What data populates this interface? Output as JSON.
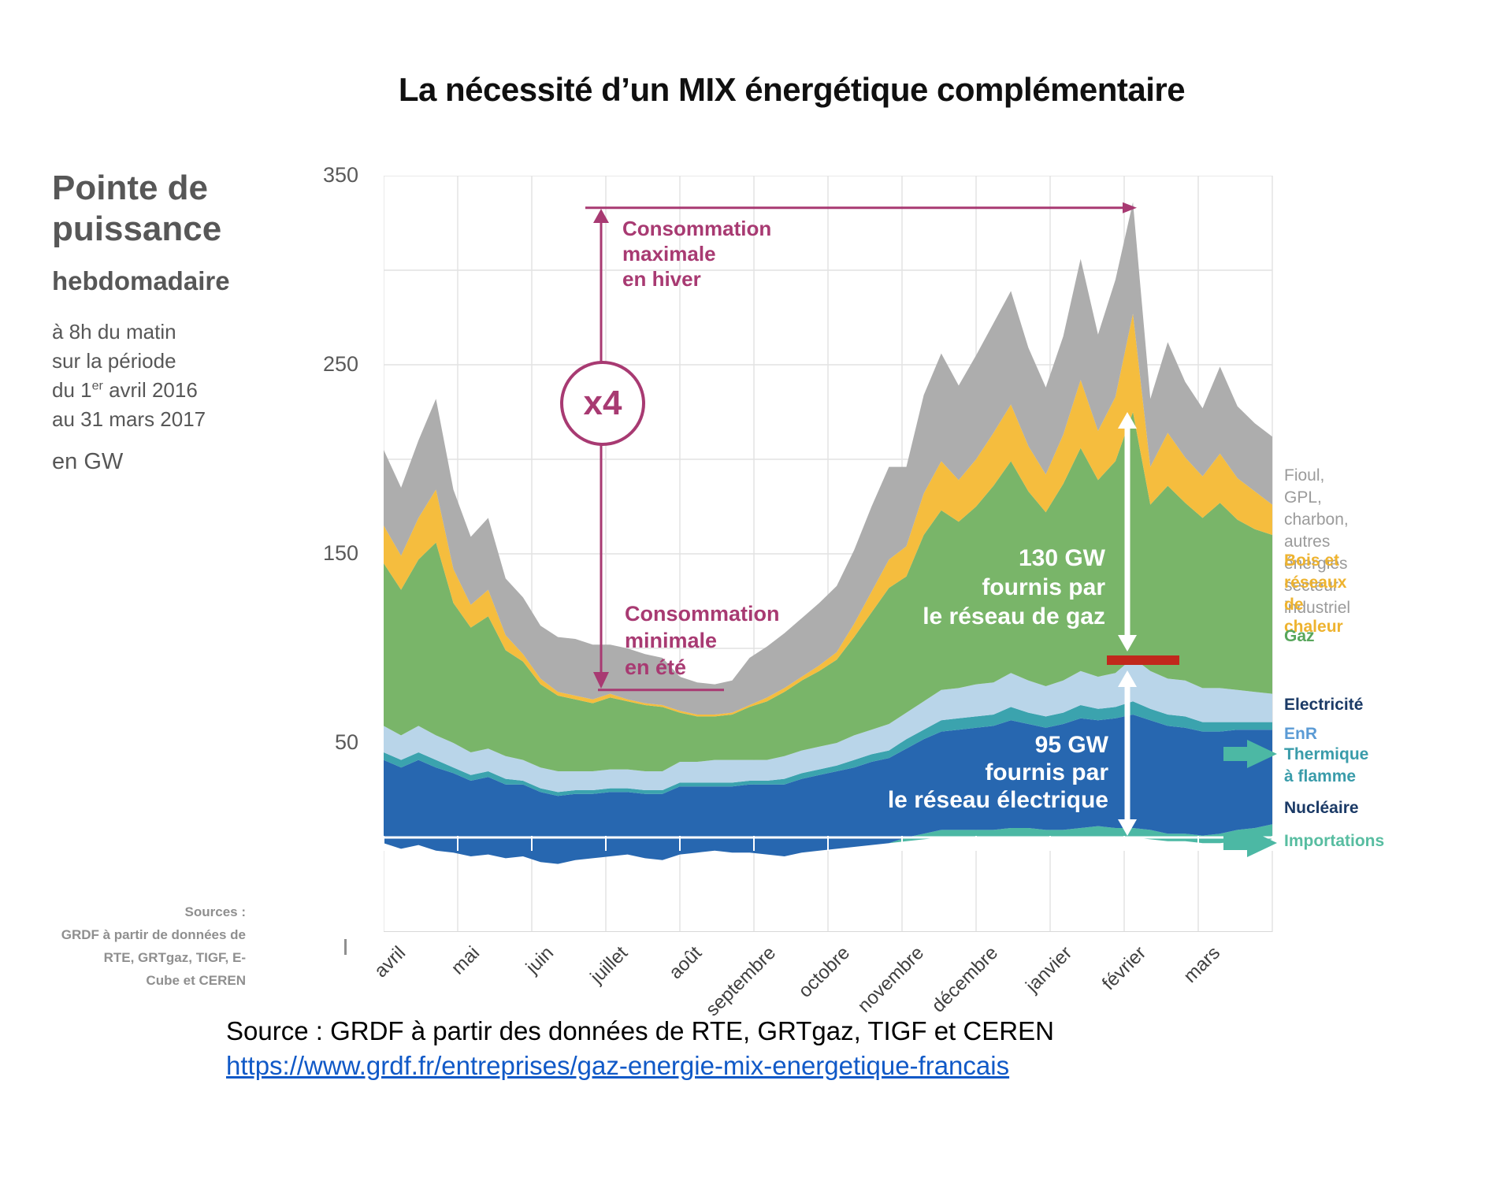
{
  "title": "La nécessité d’un MIX énergétique complémentaire",
  "left_panel": {
    "title_line1": "Pointe de",
    "title_line2": "puissance",
    "title_line3": "hebdomadaire",
    "detail_1": "à 8h du matin",
    "detail_2": "sur la période",
    "period": {
      "pre": "du 1",
      "sup": "er",
      "post": " avril 2016"
    },
    "detail_4": "au 31 mars 2017",
    "unit": "en GW"
  },
  "sources_note": "Sources :\nGRDF à partir de données de\nRTE, GRTgaz, TIGF, E-\nCube et CEREN",
  "annotations": {
    "max_label": "Consommation\nmaximale\nen hiver",
    "min_label": "Consommation\nminimale\nen été",
    "multiplier": "x4",
    "gas_note": "130 GW\nfournis par\nle réseau de gaz",
    "elec_note": "95 GW\nfournis par\nle réseau électrique",
    "accent_color": "#a83a72",
    "measure_arrow_color": "#ffffff",
    "red_dash_color": "#c1281c"
  },
  "legend": [
    {
      "id": "fioul",
      "text": "Fioul, GPL, charbon,\nautres énergies secteur\nindustriel",
      "color": "#9b9b9b",
      "bold": false
    },
    {
      "id": "bois",
      "text": "Bois et réseaux de\nchaleur",
      "color": "#eeb32f",
      "bold": true
    },
    {
      "id": "gaz",
      "text": "Gaz",
      "color": "#58a65c",
      "bold": true
    },
    {
      "id": "electricite",
      "text": "Electricité",
      "color": "#1b3a66",
      "bold": true
    },
    {
      "id": "enr",
      "text": "EnR",
      "color": "#5b9bd5",
      "bold": true
    },
    {
      "id": "thermique",
      "text": "Thermique à flamme",
      "color": "#3a9caa",
      "bold": true
    },
    {
      "id": "nucleaire",
      "text": "Nucléaire",
      "color": "#1b3a66",
      "bold": true
    },
    {
      "id": "importations",
      "text": "Importations",
      "color": "#58bda1",
      "bold": true
    }
  ],
  "footer": {
    "source_text": "Source : GRDF à partir des données de RTE, GRTgaz, TIGF et CEREN",
    "link_text": "https://www.grdf.fr/entreprises/gaz-energie-mix-energetique-francais"
  },
  "chart_data": {
    "type": "area",
    "stacked": true,
    "unit": "GW",
    "title": "Pointe de puissance hebdomadaire à 8h du matin, avril 2016 - mars 2017",
    "x_months": [
      "avril",
      "mai",
      "juin",
      "juillet",
      "août",
      "septembre",
      "octobre",
      "novembre",
      "décembre",
      "janvier",
      "février",
      "mars"
    ],
    "weeks": 52,
    "ylim": [
      -50,
      350
    ],
    "yticks": [
      350,
      250,
      150,
      50
    ],
    "grid": true,
    "legend_position": "right",
    "exports_below_zero": [
      3,
      6,
      4,
      7,
      8,
      10,
      9,
      11,
      10,
      13,
      14,
      12,
      11,
      10,
      9,
      11,
      12,
      9,
      8,
      7,
      8,
      8,
      9,
      10,
      8,
      7,
      6,
      5,
      4,
      3,
      2,
      1,
      0,
      0,
      0,
      0,
      0,
      0,
      0,
      0,
      0,
      0,
      0,
      0,
      1,
      2,
      2,
      3,
      3,
      2,
      2,
      1
    ],
    "series": [
      {
        "name": "Importations",
        "color": "#4cb8a4",
        "values": [
          0,
          0,
          0,
          0,
          0,
          0,
          0,
          0,
          0,
          0,
          0,
          0,
          0,
          0,
          0,
          0,
          0,
          0,
          0,
          0,
          0,
          0,
          0,
          0,
          0,
          0,
          0,
          0,
          0,
          0,
          2,
          3,
          4,
          4,
          4,
          4,
          5,
          5,
          4,
          4,
          5,
          6,
          5,
          5,
          5,
          4,
          4,
          4,
          5,
          6,
          7,
          8
        ]
      },
      {
        "name": "Nucléaire",
        "color": "#2767b0",
        "values": [
          44,
          43,
          45,
          44,
          42,
          40,
          41,
          39,
          38,
          37,
          36,
          35,
          34,
          34,
          33,
          34,
          35,
          36,
          35,
          34,
          35,
          36,
          37,
          38,
          39,
          40,
          41,
          42,
          44,
          45,
          47,
          50,
          52,
          53,
          54,
          55,
          57,
          55,
          54,
          56,
          58,
          56,
          58,
          60,
          58,
          57,
          56,
          55,
          54,
          53,
          52,
          50
        ]
      },
      {
        "name": "Thermique à flamme",
        "color": "#3ba3ae",
        "values": [
          4,
          4,
          4,
          4,
          3,
          3,
          3,
          3,
          2,
          2,
          2,
          2,
          2,
          2,
          2,
          2,
          2,
          2,
          2,
          2,
          2,
          2,
          2,
          3,
          3,
          3,
          3,
          4,
          4,
          4,
          5,
          5,
          6,
          6,
          6,
          6,
          7,
          6,
          6,
          6,
          7,
          6,
          6,
          7,
          6,
          6,
          6,
          5,
          5,
          4,
          4,
          4
        ]
      },
      {
        "name": "EnR",
        "color": "#b9d5e9",
        "values": [
          14,
          13,
          14,
          13,
          13,
          12,
          12,
          12,
          11,
          11,
          11,
          10,
          10,
          10,
          10,
          10,
          10,
          11,
          11,
          12,
          12,
          11,
          11,
          12,
          12,
          12,
          12,
          13,
          13,
          14,
          14,
          15,
          16,
          16,
          17,
          17,
          18,
          17,
          16,
          17,
          18,
          17,
          18,
          23,
          20,
          19,
          19,
          18,
          18,
          17,
          16,
          15
        ]
      },
      {
        "name": "Gaz",
        "color": "#79b569",
        "values": [
          86,
          77,
          88,
          102,
          74,
          66,
          70,
          56,
          52,
          44,
          40,
          38,
          36,
          38,
          36,
          35,
          34,
          26,
          24,
          23,
          24,
          28,
          31,
          34,
          37,
          40,
          44,
          52,
          62,
          72,
          72,
          88,
          95,
          88,
          94,
          104,
          112,
          100,
          92,
          104,
          118,
          104,
          112,
          130,
          88,
          102,
          94,
          90,
          98,
          90,
          86,
          84
        ]
      },
      {
        "name": "Bois et réseaux de chaleur",
        "color": "#f5bd3e",
        "values": [
          20,
          18,
          22,
          28,
          18,
          12,
          14,
          8,
          4,
          3,
          2,
          2,
          2,
          2,
          1,
          1,
          1,
          1,
          1,
          1,
          1,
          1,
          2,
          2,
          2,
          3,
          4,
          7,
          11,
          15,
          16,
          22,
          26,
          22,
          25,
          28,
          30,
          24,
          20,
          26,
          36,
          26,
          34,
          52,
          20,
          28,
          24,
          22,
          26,
          22,
          20,
          16
        ]
      },
      {
        "name": "Fioul, GPL, charbon, autres énergies secteur industriel",
        "color": "#adadad",
        "values": [
          40,
          36,
          41,
          48,
          42,
          36,
          38,
          30,
          30,
          28,
          29,
          30,
          29,
          26,
          27,
          26,
          25,
          18,
          17,
          16,
          17,
          25,
          27,
          29,
          31,
          33,
          35,
          39,
          45,
          49,
          42,
          52,
          57,
          50,
          55,
          58,
          60,
          52,
          46,
          52,
          64,
          51,
          62,
          59,
          36,
          48,
          40,
          36,
          46,
          38,
          36,
          36
        ]
      }
    ],
    "annotation_values": {
      "max_line_gw": 333,
      "min_line_gw": 78,
      "gas_arrow": {
        "from_gw": 225,
        "to_gw": 95,
        "label": "130 GW fournis par le réseau de gaz"
      },
      "elec_arrow": {
        "from_gw": 94,
        "to_gw": 0,
        "label": "95 GW fournis par le réseau électrique"
      }
    }
  }
}
